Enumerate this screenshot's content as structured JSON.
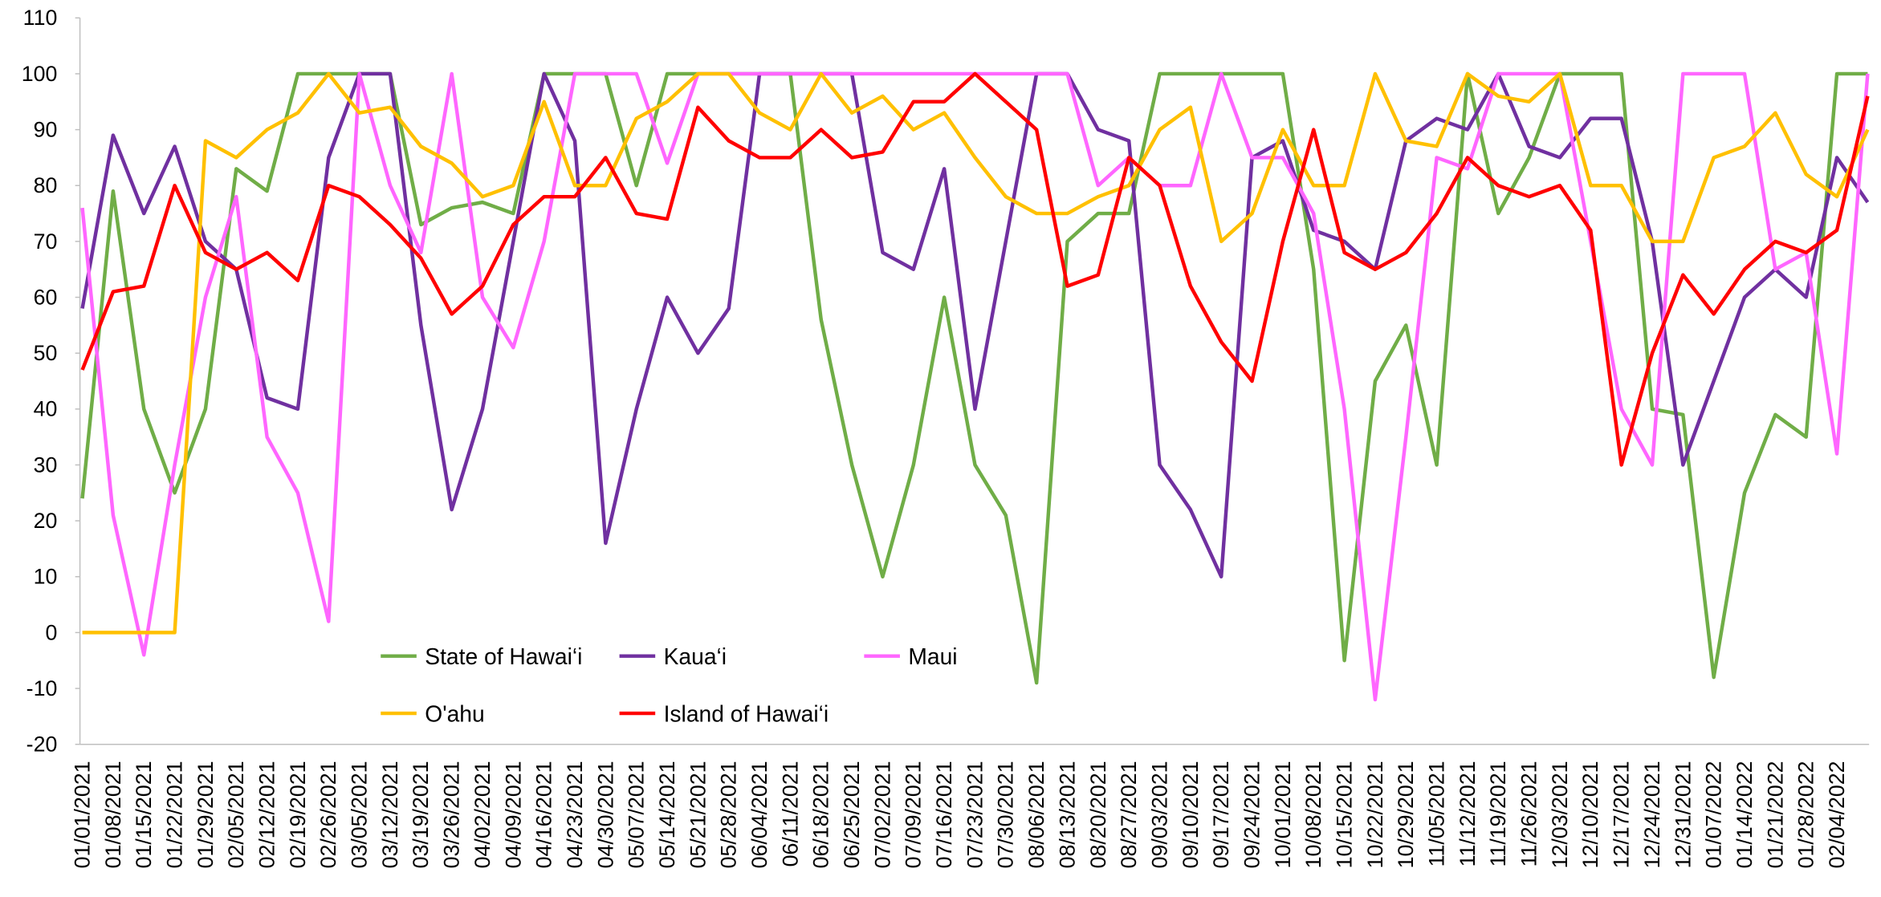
{
  "chart_data": {
    "type": "line",
    "categories": [
      "01/01/2021",
      "01/08/2021",
      "01/15/2021",
      "01/22/2021",
      "01/29/2021",
      "02/05/2021",
      "02/12/2021",
      "02/19/2021",
      "02/26/2021",
      "03/05/2021",
      "03/12/2021",
      "03/19/2021",
      "03/26/2021",
      "04/02/2021",
      "04/09/2021",
      "04/16/2021",
      "04/23/2021",
      "04/30/2021",
      "05/07/2021",
      "05/14/2021",
      "05/21/2021",
      "05/28/2021",
      "06/04/2021",
      "06/11/2021",
      "06/18/2021",
      "06/25/2021",
      "07/02/2021",
      "07/09/2021",
      "07/16/2021",
      "07/23/2021",
      "07/30/2021",
      "08/06/2021",
      "08/13/2021",
      "08/20/2021",
      "08/27/2021",
      "09/03/2021",
      "09/10/2021",
      "09/17/2021",
      "09/24/2021",
      "10/01/2021",
      "10/08/2021",
      "10/15/2021",
      "10/22/2021",
      "10/29/2021",
      "11/05/2021",
      "11/12/2021",
      "11/19/2021",
      "11/26/2021",
      "12/03/2021",
      "12/10/2021",
      "12/17/2021",
      "12/24/2021",
      "12/31/2021",
      "01/07/2022",
      "01/14/2022",
      "01/21/2022",
      "01/28/2022",
      "02/04/2022",
      null
    ],
    "series": [
      {
        "name": "State of Hawai‘i",
        "color": "#70ad47",
        "values": [
          24,
          79,
          40,
          25,
          40,
          83,
          79,
          100,
          100,
          100,
          100,
          73,
          76,
          77,
          75,
          100,
          100,
          100,
          80,
          100,
          100,
          100,
          100,
          100,
          56,
          30,
          10,
          30,
          60,
          30,
          21,
          -9,
          70,
          75,
          75,
          100,
          100,
          100,
          100,
          100,
          65,
          -5,
          45,
          55,
          30,
          100,
          75,
          85,
          100,
          100,
          100,
          40,
          39,
          -8,
          25,
          39,
          35,
          100,
          100
        ]
      },
      {
        "name": "Kaua‘i",
        "color": "#7030a0",
        "values": [
          58,
          89,
          75,
          87,
          70,
          65,
          42,
          40,
          85,
          100,
          100,
          55,
          22,
          40,
          70,
          100,
          88,
          16,
          40,
          60,
          50,
          58,
          100,
          100,
          100,
          100,
          68,
          65,
          83,
          40,
          70,
          100,
          100,
          90,
          88,
          30,
          22,
          10,
          85,
          88,
          72,
          70,
          65,
          88,
          92,
          90,
          100,
          87,
          85,
          92,
          92,
          70,
          30,
          45,
          60,
          65,
          60,
          85,
          77
        ]
      },
      {
        "name": "Maui",
        "color": "#ff66ff",
        "values": [
          76,
          21,
          -4,
          30,
          60,
          78,
          35,
          25,
          2,
          100,
          80,
          68,
          100,
          60,
          51,
          70,
          100,
          100,
          100,
          84,
          100,
          100,
          100,
          100,
          100,
          100,
          100,
          100,
          100,
          100,
          100,
          100,
          100,
          80,
          85,
          80,
          80,
          100,
          85,
          85,
          75,
          40,
          -12,
          35,
          85,
          83,
          100,
          100,
          100,
          70,
          40,
          30,
          100,
          100,
          100,
          65,
          68,
          32,
          100
        ]
      },
      {
        "name": "O'ahu",
        "color": "#ffc000",
        "values": [
          0,
          0,
          0,
          0,
          88,
          85,
          90,
          93,
          100,
          93,
          94,
          87,
          84,
          78,
          80,
          95,
          80,
          80,
          92,
          95,
          100,
          100,
          93,
          90,
          100,
          93,
          96,
          90,
          93,
          85,
          78,
          75,
          75,
          78,
          80,
          90,
          94,
          70,
          75,
          90,
          80,
          80,
          100,
          88,
          87,
          100,
          96,
          95,
          100,
          80,
          80,
          70,
          70,
          85,
          87,
          93,
          82,
          78,
          90
        ]
      },
      {
        "name": "Island of Hawai‘i",
        "color": "#ff0000",
        "values": [
          47,
          61,
          62,
          80,
          68,
          65,
          68,
          63,
          80,
          78,
          73,
          67,
          57,
          62,
          73,
          78,
          78,
          85,
          75,
          74,
          94,
          88,
          85,
          85,
          90,
          85,
          86,
          95,
          95,
          100,
          95,
          90,
          62,
          64,
          85,
          80,
          62,
          52,
          45,
          70,
          90,
          68,
          65,
          68,
          75,
          85,
          80,
          78,
          80,
          72,
          30,
          50,
          64,
          57,
          65,
          70,
          68,
          72,
          96
        ]
      }
    ],
    "ylim": [
      -20,
      110
    ],
    "yticks": [
      -20,
      -10,
      0,
      10,
      20,
      30,
      40,
      50,
      60,
      70,
      80,
      90,
      100,
      110
    ]
  }
}
